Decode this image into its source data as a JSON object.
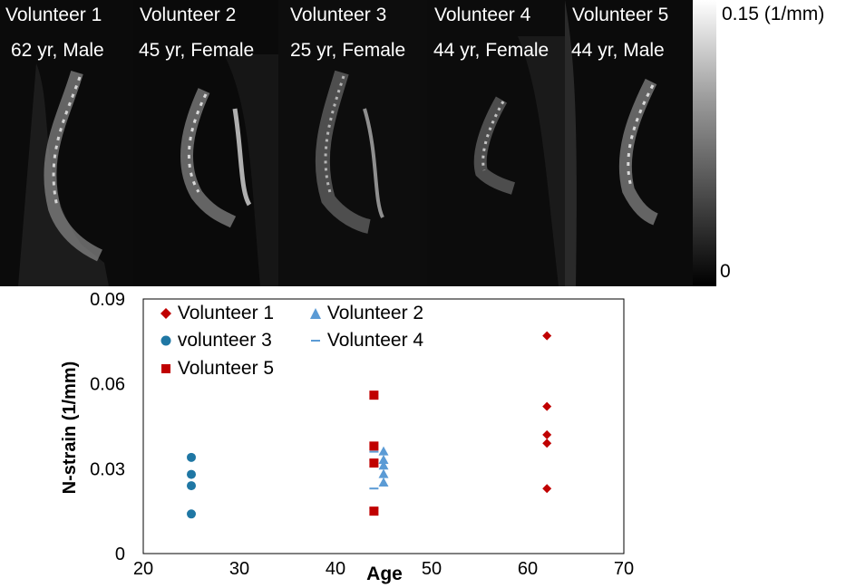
{
  "panels": [
    {
      "title": "Volunteer 1",
      "subtitle": "62 yr, Male"
    },
    {
      "title": "Volunteer 2",
      "subtitle": "45 yr, Female"
    },
    {
      "title": "Volunteer 3",
      "subtitle": "25 yr, Female"
    },
    {
      "title": "Volunteer 4",
      "subtitle": "44 yr, Female"
    },
    {
      "title": "Volunteer 5",
      "subtitle": "44 yr, Male"
    }
  ],
  "colorbar": {
    "max_label": "0.15 (1/mm)",
    "min_label": "0"
  },
  "chart_data": {
    "type": "scatter",
    "xlabel": "Age",
    "ylabel": "N-strain (1/mm)",
    "xlim": [
      20,
      70
    ],
    "ylim": [
      0,
      0.09
    ],
    "xticks": [
      "20",
      "30",
      "40",
      "50",
      "60",
      "70"
    ],
    "yticks": [
      "0",
      "0.03",
      "0.06",
      "0.09"
    ],
    "grid": false,
    "legend_position": "top-left inside",
    "series": [
      {
        "name": "Volunteer 1",
        "marker": "diamond",
        "color": "#c00000",
        "x": [
          62,
          62,
          62,
          62,
          62
        ],
        "y": [
          0.077,
          0.052,
          0.042,
          0.039,
          0.023
        ]
      },
      {
        "name": "Volunteer 2",
        "marker": "triangle",
        "color": "#5b9bd5",
        "x": [
          45,
          45,
          45,
          45,
          45
        ],
        "y": [
          0.036,
          0.033,
          0.031,
          0.028,
          0.025
        ]
      },
      {
        "name": "volunteer 3",
        "marker": "circle",
        "color": "#1f77a4",
        "x": [
          25,
          25,
          25,
          25
        ],
        "y": [
          0.034,
          0.028,
          0.024,
          0.014
        ]
      },
      {
        "name": "Volunteer 4",
        "marker": "dash",
        "color": "#5b9bd5",
        "x": [
          44,
          44,
          44,
          44
        ],
        "y": [
          0.036,
          0.033,
          0.023,
          0.016
        ]
      },
      {
        "name": "Volunteer 5",
        "marker": "square",
        "color": "#c00000",
        "x": [
          44,
          44,
          44,
          44
        ],
        "y": [
          0.056,
          0.038,
          0.032,
          0.015
        ]
      }
    ]
  }
}
